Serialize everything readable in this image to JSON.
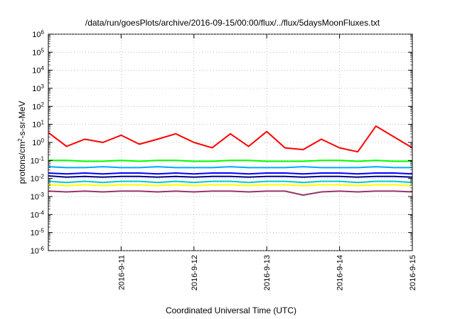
{
  "chart_data": {
    "type": "line",
    "title": "/data/run/goesPlots/archive/2016-09-15/00:00/flux/../flux/5daysMoonFluxes.txt",
    "xlabel": "Coordinated Universal Time (UTC)",
    "ylabel_parts": {
      "base": "protons/cm",
      "sup": "2",
      "rest": "-s-sr-MeV"
    },
    "yscale": "log",
    "ylim": [
      1e-06,
      1000000.0
    ],
    "xlim": [
      "2016-09-10 00:00",
      "2016-09-15 00:00"
    ],
    "grid": true,
    "legend": "none",
    "x_ticks": [
      "2016-9-11",
      "2016-9-12",
      "2016-9-13",
      "2016-9-14",
      "2016-9-15"
    ],
    "y_ticks": [
      {
        "base": "10",
        "exp": "6"
      },
      {
        "base": "10",
        "exp": "5"
      },
      {
        "base": "10",
        "exp": "4"
      },
      {
        "base": "10",
        "exp": "3"
      },
      {
        "base": "10",
        "exp": "2"
      },
      {
        "base": "10",
        "exp": "1"
      },
      {
        "base": "10",
        "exp": "0"
      },
      {
        "base": "10",
        "exp": "-1"
      },
      {
        "base": "10",
        "exp": "-2"
      },
      {
        "base": "10",
        "exp": "-3"
      },
      {
        "base": "10",
        "exp": "-4"
      },
      {
        "base": "10",
        "exp": "-5"
      },
      {
        "base": "10",
        "exp": "-6"
      }
    ],
    "x_days": [
      0,
      0.25,
      0.5,
      0.75,
      1,
      1.25,
      1.5,
      1.75,
      2,
      2.25,
      2.5,
      2.75,
      3,
      3.25,
      3.5,
      3.75,
      4,
      4.25,
      4.5,
      4.75,
      5
    ],
    "series": [
      {
        "color": "#ff0000",
        "values": [
          3.5,
          0.6,
          1.5,
          1.0,
          2.5,
          0.8,
          1.5,
          3.0,
          1.0,
          0.5,
          3.0,
          0.6,
          4.0,
          0.5,
          0.4,
          1.5,
          0.5,
          0.3,
          8.0,
          2.0,
          0.5
        ]
      },
      {
        "color": "#00ff00",
        "values": [
          0.1,
          0.1,
          0.09,
          0.09,
          0.1,
          0.09,
          0.1,
          0.1,
          0.09,
          0.09,
          0.1,
          0.1,
          0.09,
          0.09,
          0.09,
          0.1,
          0.1,
          0.09,
          0.1,
          0.09,
          0.09
        ]
      },
      {
        "color": "#00aaff",
        "values": [
          0.045,
          0.04,
          0.04,
          0.045,
          0.04,
          0.04,
          0.045,
          0.04,
          0.04,
          0.04,
          0.045,
          0.04,
          0.04,
          0.04,
          0.045,
          0.04,
          0.04,
          0.04,
          0.045,
          0.04,
          0.04
        ]
      },
      {
        "color": "#0000ff",
        "values": [
          0.02,
          0.018,
          0.02,
          0.018,
          0.02,
          0.02,
          0.018,
          0.02,
          0.018,
          0.02,
          0.02,
          0.018,
          0.02,
          0.02,
          0.018,
          0.02,
          0.02,
          0.018,
          0.02,
          0.02,
          0.018
        ]
      },
      {
        "color": "#000080",
        "values": [
          0.014,
          0.012,
          0.013,
          0.012,
          0.013,
          0.013,
          0.012,
          0.013,
          0.012,
          0.013,
          0.013,
          0.012,
          0.013,
          0.013,
          0.012,
          0.013,
          0.013,
          0.012,
          0.013,
          0.013,
          0.012
        ]
      },
      {
        "color": "#00cccc",
        "values": [
          0.007,
          0.006,
          0.007,
          0.006,
          0.007,
          0.007,
          0.006,
          0.007,
          0.006,
          0.007,
          0.007,
          0.006,
          0.007,
          0.007,
          0.006,
          0.007,
          0.007,
          0.006,
          0.007,
          0.007,
          0.006
        ]
      },
      {
        "color": "#ffff00",
        "values": [
          0.0045,
          0.004,
          0.0045,
          0.004,
          0.0045,
          0.0045,
          0.004,
          0.0045,
          0.004,
          0.0045,
          0.0045,
          0.004,
          0.0045,
          0.0045,
          0.004,
          0.0045,
          0.0045,
          0.004,
          0.0045,
          0.0045,
          0.004
        ]
      },
      {
        "color": "#993366",
        "values": [
          0.002,
          0.0018,
          0.002,
          0.0018,
          0.002,
          0.002,
          0.0018,
          0.002,
          0.0018,
          0.002,
          0.002,
          0.0018,
          0.002,
          0.002,
          0.0012,
          0.0018,
          0.002,
          0.0018,
          0.002,
          0.002,
          0.0018
        ]
      }
    ]
  }
}
